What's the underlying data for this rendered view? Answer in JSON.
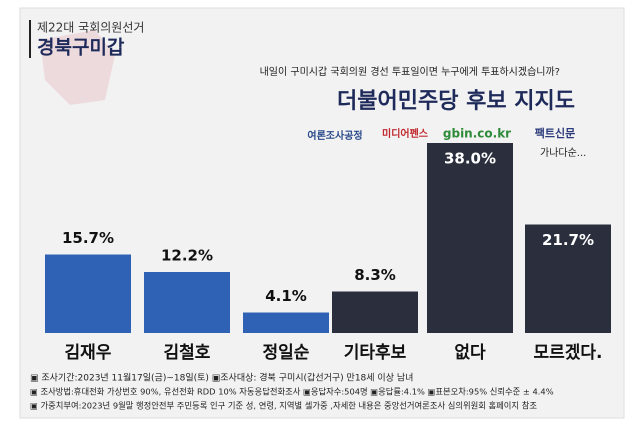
{
  "header": {
    "election": "제22대 국회의원선거",
    "district": "경북구미갑"
  },
  "question": "내일이  구미시갑 국회의원 경선 투표일이면 누구에게 투표하시겠습니까?",
  "sources": [
    "여론조사공정",
    "미디어펜스",
    "gbin.co.kr",
    "팩트신문"
  ],
  "chart_data": {
    "type": "bar",
    "title": "더불어민주당 후보 지지도",
    "annotation": "가나다순...",
    "categories": [
      "김재우",
      "김철호",
      "정일순",
      "기타후보",
      "없다",
      "모르겠다."
    ],
    "values": [
      15.7,
      12.2,
      4.1,
      8.3,
      38.0,
      21.7
    ],
    "value_labels": [
      "15.7%",
      "12.2%",
      "4.1%",
      "8.3%",
      "38.0%",
      "21.7%"
    ],
    "colors": [
      "#2f62b4",
      "#2f62b4",
      "#2f62b4",
      "#2b2f3d",
      "#2b2f3d",
      "#2b2f3d"
    ]
  },
  "footnotes": [
    "▣ 조사기간:2023년 11월17일(금)~18일(토) ▣조사대상: 경북 구미시(갑선거구) 만18세 이상 남녀",
    "▣ 조사방법:휴대전화 가상번호 90%, 유선전화 RDD 10% 자동응답전화조사 ▣응답자수:504명 ▣응답률:4.1% ▣표본오차:95% 신뢰수준 ± 4.4%",
    "▣ 가중치부여:2023년 9월말 행정안전부 주민등록 인구 기준 성, 연령, 지역별 셀가중 ,자세한 내용은 중앙선거여론조사 심의위원회 홈페이지 참조"
  ]
}
